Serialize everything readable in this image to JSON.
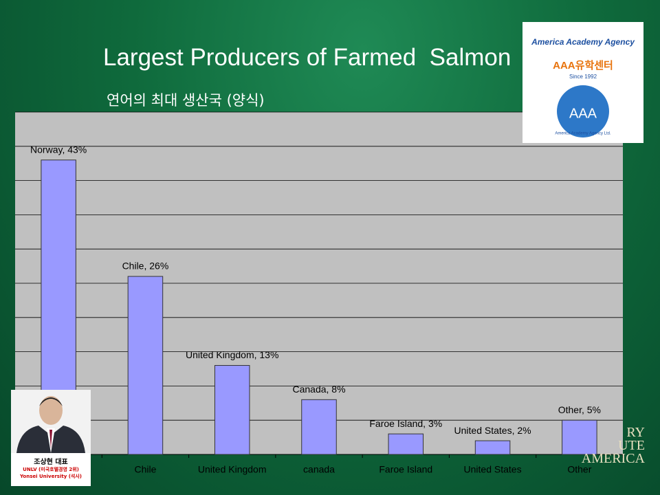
{
  "chart_data": {
    "type": "bar",
    "title": "Largest Producers of Farmed  Salmon",
    "subtitle": "연어의 최대 생산국 (양식)",
    "categories": [
      "Norway",
      "Chile",
      "United Kingdom",
      "canada",
      "Faroe Island",
      "United States",
      "Other"
    ],
    "values": [
      43,
      26,
      13,
      8,
      3,
      2,
      5
    ],
    "value_labels": [
      "Norway, 43%",
      "Chile, 26%",
      "United Kingdom, 13%",
      "Canada, 8%",
      "Faroe Island, 3%",
      "United States, 2%",
      "Other, 5%"
    ],
    "color": "#9999ff",
    "ylim": [
      0,
      50
    ],
    "yticks": [
      0,
      5,
      10,
      15,
      20,
      25,
      30,
      35,
      40,
      45,
      50
    ],
    "grid": true
  },
  "logo": {
    "arc": "America Academy Agency",
    "name": "AAA유학센터",
    "since": "Since 1992",
    "abbrev": "AAA",
    "ltd": "America Academy Agency Ltd."
  },
  "profile": {
    "name": "조상현 대표",
    "line1": "UNLV (미국호텔경영 2위)",
    "line2": "Yonsei University (석사)"
  },
  "brand": [
    "RY",
    "UTE",
    "AMERICA"
  ]
}
